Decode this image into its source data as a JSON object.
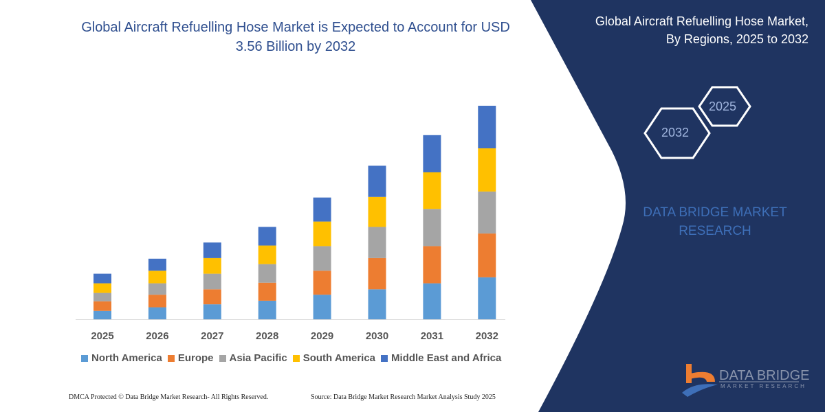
{
  "header": {
    "title": "Global Aircraft Refuelling Hose Market is Expected to Account for USD 3.56 Billion by 2032",
    "side_title": "Global Aircraft Refuelling Hose Market, By Regions, 2025 to 2032",
    "hex_start": "2025",
    "hex_end": "2032",
    "brand": "DATA BRIDGE MARKET RESEARCH",
    "logo_name": "DATA BRIDGE",
    "logo_sub": "MARKET RESEARCH"
  },
  "footer": {
    "left": "DMCA Protected © Data Bridge Market Research-  All Rights Reserved.",
    "right": "Source: Data Bridge Market Research  Market Analysis Study 2025"
  },
  "colors": {
    "panel": "#1f3461",
    "title": "#2f4f8f",
    "accent_orange": "#ed7d31"
  },
  "chart_data": {
    "type": "bar",
    "stacked": true,
    "title": "Global Aircraft Refuelling Hose Market is Expected to Account for USD 3.56 Billion by 2032",
    "categories": [
      "2025",
      "2026",
      "2027",
      "2028",
      "2029",
      "2030",
      "2031",
      "2032"
    ],
    "series": [
      {
        "name": "North America",
        "color": "#5b9bd5",
        "values": [
          0.14,
          0.2,
          0.25,
          0.31,
          0.41,
          0.5,
          0.6,
          0.7
        ]
      },
      {
        "name": "Europe",
        "color": "#ed7d31",
        "values": [
          0.16,
          0.21,
          0.25,
          0.3,
          0.4,
          0.52,
          0.62,
          0.73
        ]
      },
      {
        "name": "Asia Pacific",
        "color": "#a5a5a5",
        "values": [
          0.14,
          0.19,
          0.26,
          0.31,
          0.41,
          0.52,
          0.62,
          0.7
        ]
      },
      {
        "name": "South America",
        "color": "#ffc000",
        "values": [
          0.16,
          0.21,
          0.26,
          0.31,
          0.41,
          0.5,
          0.61,
          0.72
        ]
      },
      {
        "name": "Middle East and Africa",
        "color": "#4472c4",
        "values": [
          0.16,
          0.2,
          0.26,
          0.31,
          0.4,
          0.52,
          0.62,
          0.71
        ]
      }
    ],
    "ylim": [
      0,
      3.56
    ],
    "grid": false,
    "legend": "bottom"
  }
}
